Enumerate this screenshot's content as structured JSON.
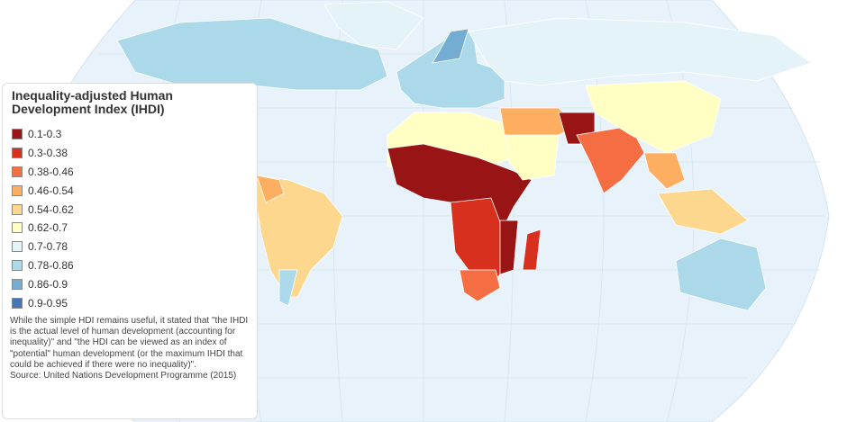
{
  "legend": {
    "title": "Inequality-adjusted Human Development Index (IHDI)",
    "items": [
      {
        "label": "0.1-0.3",
        "color": "#991414"
      },
      {
        "label": "0.3-0.38",
        "color": "#d7301f"
      },
      {
        "label": "0.38-0.46",
        "color": "#f46d43"
      },
      {
        "label": "0.46-0.54",
        "color": "#fdae61"
      },
      {
        "label": "0.54-0.62",
        "color": "#fdd78e"
      },
      {
        "label": "0.62-0.7",
        "color": "#ffffc4"
      },
      {
        "label": "0.7-0.78",
        "color": "#e4f3f8"
      },
      {
        "label": "0.78-0.86",
        "color": "#abd9e9"
      },
      {
        "label": "0.86-0.9",
        "color": "#74add1"
      },
      {
        "label": "0.9-0.95",
        "color": "#4575b4"
      }
    ]
  },
  "description": "While the simple HDI remains useful, it stated that \"the IHDI is the actual level of human development (accounting for inequality)\" and \"the HDI can be viewed as an index of \"potential\" human development (or the maximum IHDI that could be achieved if there were no inequality)\".",
  "source": "Source: United Nations Development Programme (2015)"
}
